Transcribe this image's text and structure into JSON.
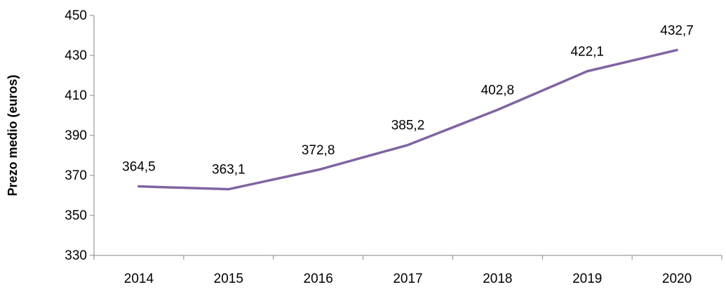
{
  "chart_data": {
    "type": "line",
    "title": "",
    "xlabel": "",
    "ylabel": "Prezo medio (euros)",
    "categories": [
      "2014",
      "2015",
      "2016",
      "2017",
      "2018",
      "2019",
      "2020"
    ],
    "series": [
      {
        "values": [
          364.5,
          363.1,
          372.8,
          385.2,
          402.8,
          422.1,
          432.7
        ],
        "labels": [
          "364,5",
          "363,1",
          "372,8",
          "385,2",
          "402,8",
          "422,1",
          "432,7"
        ],
        "color": "#8064a2"
      }
    ],
    "ylim": [
      330,
      450
    ],
    "yticks": [
      330,
      350,
      370,
      390,
      410,
      430,
      450
    ],
    "grid": false,
    "legend": "none"
  }
}
